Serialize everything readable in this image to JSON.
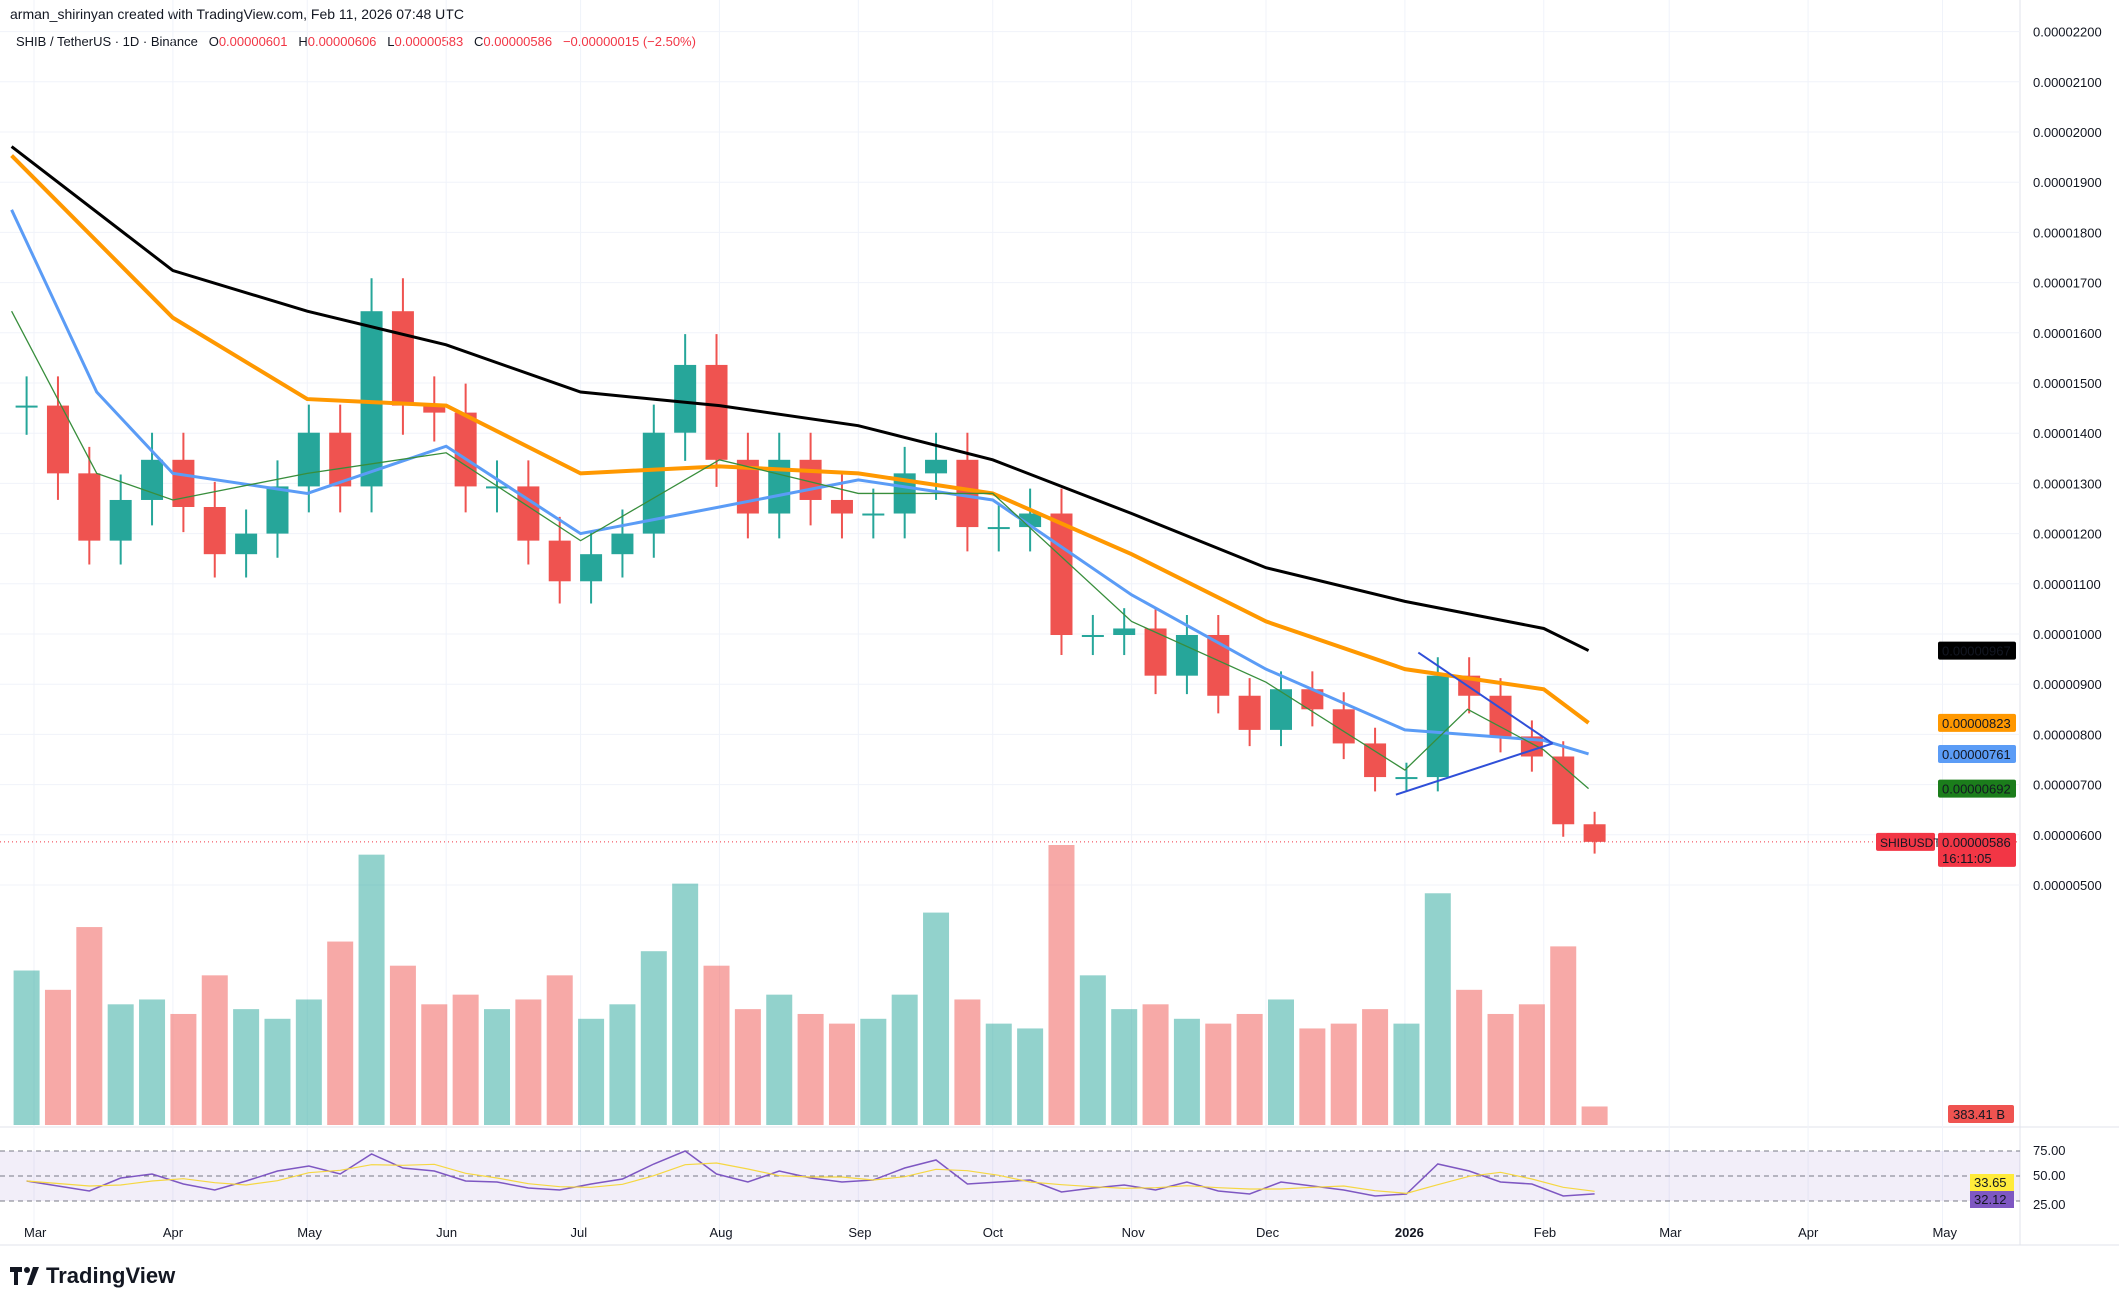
{
  "credit": "arman_shirinyan created with TradingView.com, Feb 11, 2026 07:48 UTC",
  "legend": {
    "symbol": "SHIB / TetherUS · 1D · Binance",
    "o_label": "O",
    "o": "0.00000601",
    "h_label": "H",
    "h": "0.00000606",
    "l_label": "L",
    "l": "0.00000583",
    "c_label": "C",
    "c": "0.00000586",
    "change": "−0.00000015 (−2.50%)"
  },
  "logo": "TradingView",
  "colors": {
    "up": "#26a69a",
    "down": "#ef5350",
    "ma200": "#000000",
    "ma100": "#ff9800",
    "ma50": "#5b9cf6",
    "ma20": "#388e3c",
    "rsi": "#7e57c2",
    "rsi_ma": "#f5d742",
    "triangle": "#2f4fd8"
  },
  "chart_data": {
    "type": "candlestick",
    "price_unit": "1e-8 USDT",
    "ylim": [
      500,
      2200
    ],
    "y_ticks": [
      "0.00000500",
      "0.00000600",
      "0.00000700",
      "0.00000800",
      "0.00000900",
      "0.00001000",
      "0.00001100",
      "0.00001200",
      "0.00001300",
      "0.00001400",
      "0.00001500",
      "0.00001600",
      "0.00001700",
      "0.00001800",
      "0.00001900",
      "0.00002000",
      "0.00002100",
      "0.00002200"
    ],
    "x_ticks": [
      {
        "label": "Mar",
        "date": "2025-03-01"
      },
      {
        "label": "Apr",
        "date": "2025-04-01"
      },
      {
        "label": "May",
        "date": "2025-05-01"
      },
      {
        "label": "Jun",
        "date": "2025-06-01"
      },
      {
        "label": "Jul",
        "date": "2025-07-01"
      },
      {
        "label": "Aug",
        "date": "2025-08-01"
      },
      {
        "label": "Sep",
        "date": "2025-09-01"
      },
      {
        "label": "Oct",
        "date": "2025-10-01"
      },
      {
        "label": "Nov",
        "date": "2025-11-01"
      },
      {
        "label": "Dec",
        "date": "2025-12-01"
      },
      {
        "label": "2026",
        "date": "2026-01-01"
      },
      {
        "label": "Feb",
        "date": "2026-02-01"
      },
      {
        "label": "Mar",
        "date": "2026-03-01"
      },
      {
        "label": "Apr",
        "date": "2026-04-01"
      },
      {
        "label": "May",
        "date": "2026-05-01"
      }
    ],
    "closes": [
      [
        "2025-02-24",
        1455
      ],
      [
        "2025-03-03",
        1320
      ],
      [
        "2025-03-10",
        1186
      ],
      [
        "2025-03-17",
        1267
      ],
      [
        "2025-03-24",
        1347
      ],
      [
        "2025-03-31",
        1253
      ],
      [
        "2025-04-07",
        1159
      ],
      [
        "2025-04-14",
        1200
      ],
      [
        "2025-04-21",
        1294
      ],
      [
        "2025-04-28",
        1401
      ],
      [
        "2025-05-05",
        1294
      ],
      [
        "2025-05-12",
        1643
      ],
      [
        "2025-05-19",
        1455
      ],
      [
        "2025-05-26",
        1441
      ],
      [
        "2025-06-02",
        1294
      ],
      [
        "2025-06-09",
        1294
      ],
      [
        "2025-06-16",
        1186
      ],
      [
        "2025-06-23",
        1105
      ],
      [
        "2025-06-30",
        1159
      ],
      [
        "2025-07-07",
        1200
      ],
      [
        "2025-07-14",
        1401
      ],
      [
        "2025-07-21",
        1536
      ],
      [
        "2025-07-28",
        1347
      ],
      [
        "2025-08-04",
        1240
      ],
      [
        "2025-08-11",
        1347
      ],
      [
        "2025-08-18",
        1267
      ],
      [
        "2025-08-25",
        1240
      ],
      [
        "2025-09-01",
        1240
      ],
      [
        "2025-09-08",
        1320
      ],
      [
        "2025-09-15",
        1347
      ],
      [
        "2025-09-22",
        1213
      ],
      [
        "2025-09-29",
        1213
      ],
      [
        "2025-10-06",
        1240
      ],
      [
        "2025-10-13",
        998
      ],
      [
        "2025-10-20",
        998
      ],
      [
        "2025-10-27",
        1011
      ],
      [
        "2025-11-03",
        917
      ],
      [
        "2025-11-10",
        998
      ],
      [
        "2025-11-17",
        877
      ],
      [
        "2025-11-24",
        809
      ],
      [
        "2025-12-01",
        890
      ],
      [
        "2025-12-08",
        850
      ],
      [
        "2025-12-15",
        782
      ],
      [
        "2025-12-22",
        715
      ],
      [
        "2025-12-29",
        715
      ],
      [
        "2026-01-05",
        917
      ],
      [
        "2026-01-12",
        877
      ],
      [
        "2026-01-19",
        796
      ],
      [
        "2026-01-26",
        756
      ],
      [
        "2026-02-02",
        621
      ],
      [
        "2026-02-09",
        586
      ]
    ],
    "volume_b": [
      3200,
      2800,
      4100,
      2500,
      2600,
      2300,
      3100,
      2400,
      2200,
      2600,
      3800,
      5600,
      3300,
      2500,
      2700,
      2400,
      2600,
      3100,
      2200,
      2500,
      3600,
      5000,
      3300,
      2400,
      2700,
      2300,
      2100,
      2200,
      2700,
      4400,
      2600,
      2100,
      2000,
      5800,
      3100,
      2400,
      2500,
      2200,
      2100,
      2300,
      2600,
      2000,
      2100,
      2400,
      2100,
      4800,
      2800,
      2300,
      2500,
      3700,
      383.41
    ],
    "rsi": [
      45,
      40,
      35,
      48,
      52,
      42,
      36,
      45,
      55,
      60,
      52,
      72,
      58,
      55,
      45,
      44,
      38,
      36,
      42,
      47,
      62,
      75,
      52,
      44,
      55,
      48,
      44,
      46,
      58,
      66,
      42,
      44,
      46,
      34,
      38,
      41,
      36,
      44,
      35,
      32,
      44,
      40,
      36,
      30,
      32,
      62,
      55,
      44,
      42,
      30,
      32.12
    ],
    "rsi_levels": {
      "upper": "75.00",
      "middle": "50.00",
      "lower": "25.00"
    },
    "moving_averages": [
      {
        "id": "ma200",
        "last": "0.00000967",
        "points": [
          [
            "2025-02-24",
            1971
          ],
          [
            "2025-04-01",
            1724
          ],
          [
            "2025-05-01",
            1643
          ],
          [
            "2025-06-01",
            1576
          ],
          [
            "2025-07-01",
            1482
          ],
          [
            "2025-08-01",
            1455
          ],
          [
            "2025-09-01",
            1415
          ],
          [
            "2025-10-01",
            1347
          ],
          [
            "2025-11-01",
            1240
          ],
          [
            "2025-12-01",
            1132
          ],
          [
            "2026-01-01",
            1065
          ],
          [
            "2026-02-01",
            1011
          ],
          [
            "2026-02-11",
            967
          ]
        ]
      },
      {
        "id": "ma100",
        "last": "0.00000823",
        "points": [
          [
            "2025-02-24",
            1953
          ],
          [
            "2025-04-01",
            1630
          ],
          [
            "2025-05-01",
            1468
          ],
          [
            "2025-06-01",
            1455
          ],
          [
            "2025-07-01",
            1320
          ],
          [
            "2025-08-01",
            1334
          ],
          [
            "2025-09-01",
            1320
          ],
          [
            "2025-10-01",
            1280
          ],
          [
            "2025-11-01",
            1159
          ],
          [
            "2025-12-01",
            1025
          ],
          [
            "2026-01-01",
            930
          ],
          [
            "2026-02-01",
            890
          ],
          [
            "2026-02-11",
            823
          ]
        ]
      },
      {
        "id": "ma50",
        "last": "0.00000761",
        "points": [
          [
            "2025-02-24",
            1845
          ],
          [
            "2025-03-15",
            1482
          ],
          [
            "2025-04-01",
            1320
          ],
          [
            "2025-05-01",
            1280
          ],
          [
            "2025-06-01",
            1374
          ],
          [
            "2025-07-01",
            1200
          ],
          [
            "2025-08-01",
            1253
          ],
          [
            "2025-09-01",
            1307
          ],
          [
            "2025-10-01",
            1267
          ],
          [
            "2025-11-01",
            1078
          ],
          [
            "2025-12-01",
            930
          ],
          [
            "2026-01-01",
            809
          ],
          [
            "2026-02-01",
            788
          ],
          [
            "2026-02-11",
            761
          ]
        ]
      },
      {
        "id": "ma20",
        "last": "0.00000692",
        "points": [
          [
            "2025-02-24",
            1643
          ],
          [
            "2025-03-15",
            1320
          ],
          [
            "2025-04-01",
            1267
          ],
          [
            "2025-05-01",
            1320
          ],
          [
            "2025-06-01",
            1361
          ],
          [
            "2025-07-01",
            1186
          ],
          [
            "2025-08-01",
            1347
          ],
          [
            "2025-09-01",
            1280
          ],
          [
            "2025-10-01",
            1280
          ],
          [
            "2025-11-01",
            1025
          ],
          [
            "2025-12-01",
            904
          ],
          [
            "2026-01-01",
            729
          ],
          [
            "2026-01-15",
            850
          ],
          [
            "2026-02-01",
            769
          ],
          [
            "2026-02-11",
            692
          ]
        ]
      }
    ],
    "triangle": [
      [
        [
          "2025-12-30",
          680
        ],
        [
          "2026-02-03",
          782
        ]
      ],
      [
        [
          "2026-01-04",
          963
        ],
        [
          "2026-02-03",
          782
        ]
      ]
    ],
    "last_price": {
      "symbol": "SHIBUSDT",
      "value": "0.00000586",
      "countdown": "16:11:05",
      "price": 586
    },
    "volume_label": "383.41 B",
    "rsi_values": {
      "ma": "33.65",
      "rsi": "32.12"
    }
  }
}
